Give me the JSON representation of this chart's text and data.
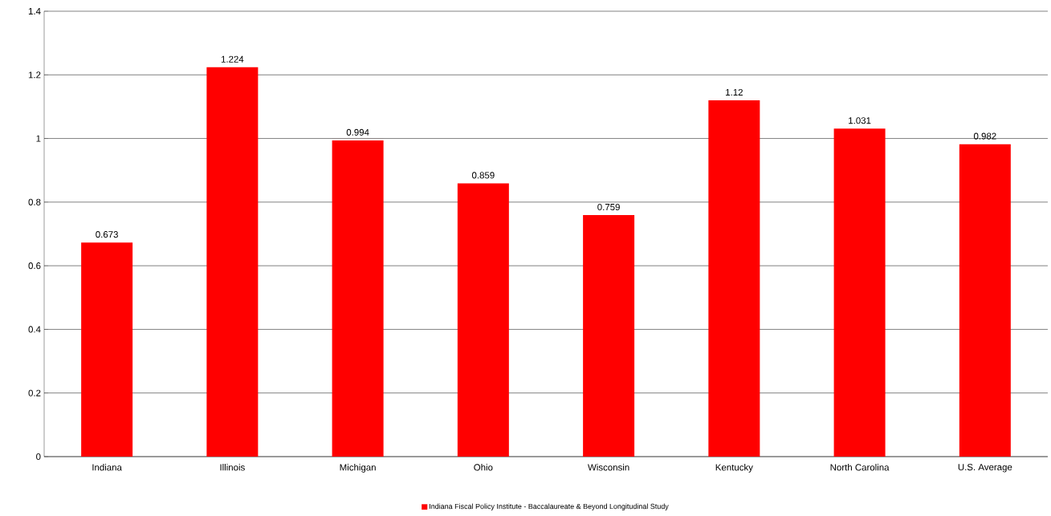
{
  "chart_data": {
    "type": "bar",
    "categories": [
      "Indiana",
      "Illinois",
      "Michigan",
      "Ohio",
      "Wisconsin",
      "Kentucky",
      "North Carolina",
      "U.S. Average"
    ],
    "series": [
      {
        "name": "Indiana Fiscal Policy Institute - Baccalaureate & Beyond Longitudinal Study",
        "color": "#ff0000",
        "values": [
          0.673,
          1.224,
          0.994,
          0.859,
          0.759,
          1.12,
          1.031,
          0.982
        ]
      }
    ],
    "ylim": [
      0,
      1.4
    ],
    "yticks": [
      0,
      0.2,
      0.4,
      0.6,
      0.8,
      1,
      1.2,
      1.4
    ],
    "grid": "y",
    "legend": "bottom",
    "data_labels": true
  }
}
